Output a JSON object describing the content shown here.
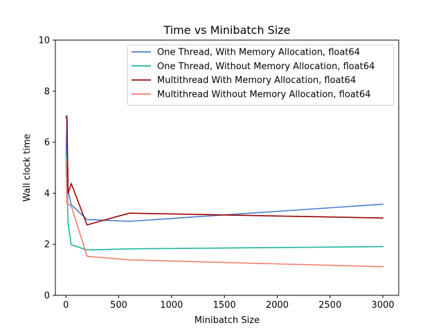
{
  "chart_data": {
    "type": "line",
    "title": "Time vs Minibatch Size",
    "xlabel": "Minibatch Size",
    "ylabel": "Wall clock time",
    "xlim": [
      -100,
      3150
    ],
    "ylim": [
      0,
      10
    ],
    "xticks": [
      0,
      500,
      1000,
      1500,
      2000,
      2500,
      3000
    ],
    "yticks": [
      0,
      2,
      4,
      6,
      8,
      10
    ],
    "xtick_labels": [
      "0",
      "500",
      "1000",
      "1500",
      "2000",
      "2500",
      "3000"
    ],
    "ytick_labels": [
      "0",
      "2",
      "4",
      "6",
      "8",
      "10"
    ],
    "grid": false,
    "legend_position": "top-right",
    "series": [
      {
        "name": "One Thread, With Memory Allocation, float64",
        "color": "#4878cf",
        "x": [
          1,
          10,
          20,
          50,
          200,
          600,
          3000
        ],
        "y": [
          5.5,
          7.05,
          4.1,
          3.55,
          2.97,
          2.9,
          3.57
        ]
      },
      {
        "name": "One Thread, Without Memory Allocation, float64",
        "color": "#1ab8a0",
        "x": [
          1,
          10,
          20,
          50,
          200,
          600,
          3000
        ],
        "y": [
          5.5,
          4.7,
          2.8,
          1.98,
          1.78,
          1.82,
          1.91
        ]
      },
      {
        "name": "Multithread With Memory Allocation, float64",
        "color": "#9b0000",
        "x": [
          1,
          10,
          20,
          50,
          200,
          600,
          3000
        ],
        "y": [
          7.0,
          6.9,
          4.0,
          4.38,
          2.76,
          3.22,
          3.03
        ]
      },
      {
        "name": "Multithread Without Memory Allocation, float64",
        "color": "#f27b6a",
        "x": [
          1,
          10,
          20,
          50,
          200,
          600,
          3000
        ],
        "y": [
          5.3,
          3.6,
          3.6,
          3.5,
          1.53,
          1.39,
          1.12
        ]
      }
    ]
  }
}
